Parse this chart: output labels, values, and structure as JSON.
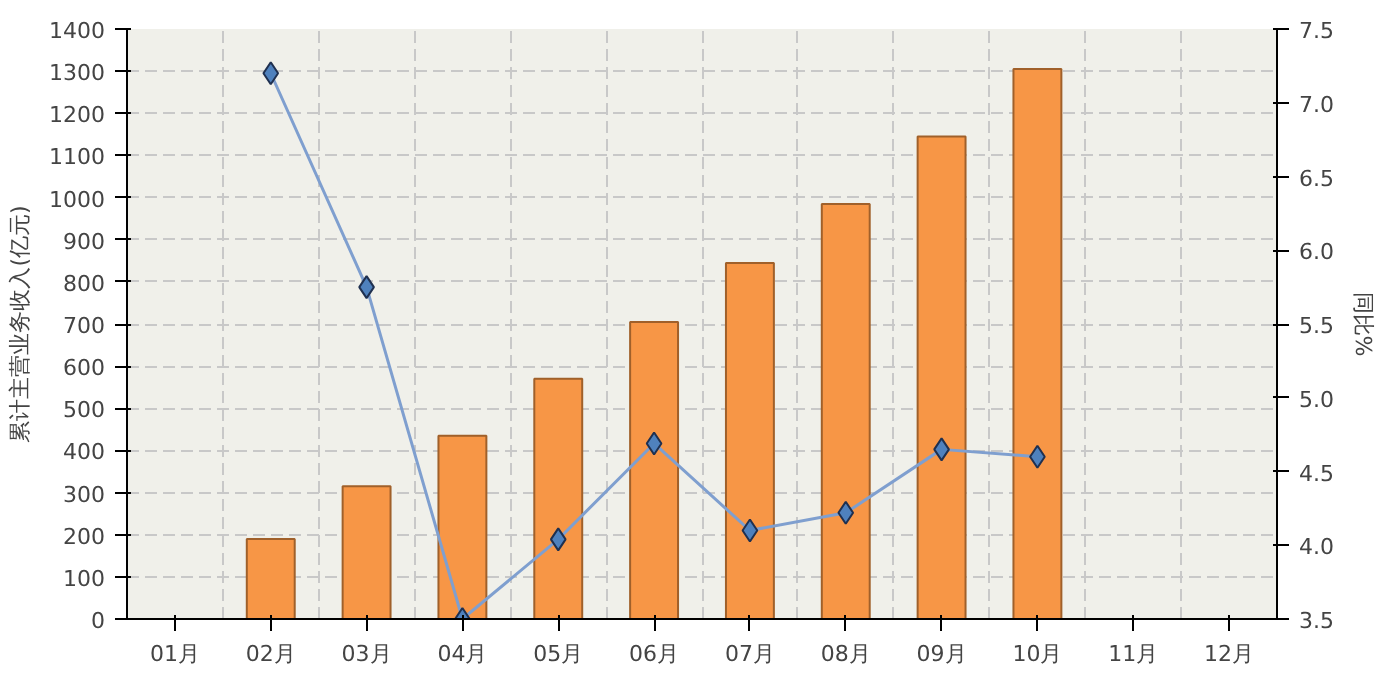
{
  "chart_data": {
    "type": "bar",
    "categories": [
      "01月",
      "02月",
      "03月",
      "04月",
      "05月",
      "06月",
      "07月",
      "08月",
      "09月",
      "10月",
      "11月",
      "12月"
    ],
    "ylabel": "累计主营业务收入(亿元)",
    "y2label": "同比%",
    "ylim": [
      0,
      1400
    ],
    "yticks": [
      0,
      100,
      200,
      300,
      400,
      500,
      600,
      700,
      800,
      900,
      1000,
      1100,
      1200,
      1300,
      1400
    ],
    "y2lim": [
      3.5,
      7.5
    ],
    "y2ticks": [
      {
        "value": 3.5,
        "label": "3.5"
      },
      {
        "value": 4,
        "label": "4.0"
      },
      {
        "value": 4.5,
        "label": "4.5"
      },
      {
        "value": 5,
        "label": "5.0"
      },
      {
        "value": 5.5,
        "label": "5.5"
      },
      {
        "value": 6,
        "label": "6.0"
      },
      {
        "value": 6.5,
        "label": "6.5"
      },
      {
        "value": 7,
        "label": "7.0"
      },
      {
        "value": 7.5,
        "label": "7.5"
      }
    ],
    "grid": true,
    "series": [
      {
        "color": "#f79646",
        "values": [
          null,
          190,
          315,
          435,
          570,
          705,
          845,
          985,
          1145,
          1305,
          null,
          null
        ]
      },
      {
        "type": "line",
        "axis": "y2",
        "color": "#7f9fcf",
        "marker": "diamond",
        "values": [
          null,
          7.2,
          5.75,
          3.5,
          4.04,
          4.69,
          4.1,
          4.22,
          4.65,
          4.6,
          null,
          null
        ]
      }
    ]
  }
}
